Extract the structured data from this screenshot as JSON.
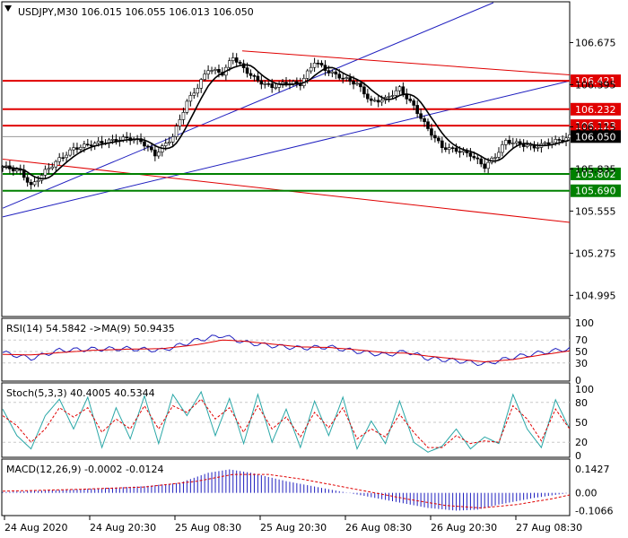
{
  "colors": {
    "bull": "#000000",
    "bear": "#000000",
    "ma": "#000000",
    "channel": "#1f1fbf",
    "resistance": "#e00000",
    "support": "#008000",
    "rsi": "#1f1fbf",
    "rsi_ma": "#e00000",
    "stoch_main": "#2aa7a7",
    "stoch_signal": "#e00000",
    "macd_hist": "#1f1fbf",
    "macd_signal": "#e00000",
    "grid": "#c8c8c8"
  },
  "header": {
    "symbol": "USDJPY,M30",
    "open": "106.015",
    "high": "106.055",
    "low": "106.013",
    "close": "106.050"
  },
  "chart_data": [
    {
      "type": "candlestick",
      "title": "USDJPY,M30  106.015 106.055 106.013 106.050",
      "ylim": [
        104.86,
        106.94
      ],
      "y_ticks": [
        "106.675",
        "106.395",
        "106.115",
        "105.835",
        "105.555",
        "105.275",
        "104.995"
      ],
      "current_price": "106.050",
      "levels": [
        {
          "label": "106.421",
          "value": 106.421,
          "kind": "resistance"
        },
        {
          "label": "106.232",
          "value": 106.232,
          "kind": "resistance"
        },
        {
          "label": "106.123",
          "value": 106.123,
          "kind": "resistance"
        },
        {
          "label": "105.802",
          "value": 105.802,
          "kind": "support"
        },
        {
          "label": "105.690",
          "value": 105.69,
          "kind": "support"
        }
      ],
      "x_ticks": [
        "24 Aug 2020",
        "24 Aug 20:30",
        "25 Aug 08:30",
        "25 Aug 20:30",
        "26 Aug 08:30",
        "26 Aug 20:30",
        "27 Aug 08:30"
      ],
      "close_path": [
        [
          0,
          105.85
        ],
        [
          5,
          105.82
        ],
        [
          8,
          105.72
        ],
        [
          12,
          105.82
        ],
        [
          16,
          105.9
        ],
        [
          20,
          105.97
        ],
        [
          25,
          106.0
        ],
        [
          30,
          106.02
        ],
        [
          35,
          106.04
        ],
        [
          39,
          106.02
        ],
        [
          43,
          105.93
        ],
        [
          48,
          106.05
        ],
        [
          52,
          106.28
        ],
        [
          55,
          106.38
        ],
        [
          58,
          106.5
        ],
        [
          62,
          106.47
        ],
        [
          65,
          106.58
        ],
        [
          68,
          106.5
        ],
        [
          72,
          106.42
        ],
        [
          76,
          106.38
        ],
        [
          80,
          106.41
        ],
        [
          84,
          106.4
        ],
        [
          88,
          106.55
        ],
        [
          92,
          106.48
        ],
        [
          96,
          106.44
        ],
        [
          100,
          106.4
        ],
        [
          104,
          106.28
        ],
        [
          108,
          106.3
        ],
        [
          112,
          106.37
        ],
        [
          116,
          106.25
        ],
        [
          120,
          106.1
        ],
        [
          124,
          105.98
        ],
        [
          128,
          105.96
        ],
        [
          132,
          105.93
        ],
        [
          136,
          105.85
        ],
        [
          139,
          105.92
        ],
        [
          142,
          106.02
        ],
        [
          146,
          106.0
        ],
        [
          150,
          105.98
        ],
        [
          154,
          106.01
        ],
        [
          158,
          106.03
        ],
        [
          160,
          106.05
        ]
      ]
    },
    {
      "type": "line",
      "title": "RSI(14) 54.5842  ->MA(9) 50.9435",
      "ylim": [
        0,
        100
      ],
      "y_ticks": [
        "100",
        "70",
        "50",
        "30",
        "0"
      ],
      "series": [
        {
          "name": "RSI(14)",
          "path": [
            [
              0,
              48
            ],
            [
              8,
              38
            ],
            [
              16,
              52
            ],
            [
              25,
              54
            ],
            [
              35,
              55
            ],
            [
              45,
              52
            ],
            [
              55,
              70
            ],
            [
              62,
              78
            ],
            [
              68,
              66
            ],
            [
              76,
              60
            ],
            [
              84,
              56
            ],
            [
              92,
              58
            ],
            [
              100,
              50
            ],
            [
              108,
              44
            ],
            [
              114,
              50
            ],
            [
              120,
              38
            ],
            [
              128,
              34
            ],
            [
              136,
              28
            ],
            [
              144,
              40
            ],
            [
              152,
              48
            ],
            [
              160,
              55
            ]
          ]
        },
        {
          "name": "MA(9)",
          "path": [
            [
              0,
              45
            ],
            [
              8,
              44
            ],
            [
              16,
              48
            ],
            [
              25,
              52
            ],
            [
              35,
              54
            ],
            [
              45,
              55
            ],
            [
              55,
              62
            ],
            [
              62,
              70
            ],
            [
              68,
              68
            ],
            [
              76,
              63
            ],
            [
              84,
              58
            ],
            [
              92,
              57
            ],
            [
              100,
              53
            ],
            [
              108,
              48
            ],
            [
              114,
              47
            ],
            [
              120,
              42
            ],
            [
              128,
              37
            ],
            [
              136,
              32
            ],
            [
              144,
              36
            ],
            [
              152,
              44
            ],
            [
              160,
              51
            ]
          ]
        }
      ]
    },
    {
      "type": "line",
      "title": "Stoch(5,3,3) 40.4005 40.5344",
      "ylim": [
        0,
        100
      ],
      "y_ticks": [
        "100",
        "80",
        "50",
        "20",
        "0"
      ],
      "series": [
        {
          "name": "main",
          "path": [
            [
              0,
              70
            ],
            [
              4,
              30
            ],
            [
              8,
              10
            ],
            [
              12,
              60
            ],
            [
              16,
              85
            ],
            [
              20,
              40
            ],
            [
              24,
              88
            ],
            [
              28,
              12
            ],
            [
              32,
              72
            ],
            [
              36,
              25
            ],
            [
              40,
              90
            ],
            [
              44,
              18
            ],
            [
              48,
              92
            ],
            [
              52,
              60
            ],
            [
              56,
              96
            ],
            [
              60,
              30
            ],
            [
              64,
              86
            ],
            [
              68,
              18
            ],
            [
              72,
              92
            ],
            [
              76,
              20
            ],
            [
              80,
              70
            ],
            [
              84,
              12
            ],
            [
              88,
              82
            ],
            [
              92,
              30
            ],
            [
              96,
              88
            ],
            [
              100,
              10
            ],
            [
              104,
              52
            ],
            [
              108,
              18
            ],
            [
              112,
              82
            ],
            [
              116,
              20
            ],
            [
              120,
              5
            ],
            [
              124,
              14
            ],
            [
              128,
              40
            ],
            [
              132,
              10
            ],
            [
              136,
              28
            ],
            [
              140,
              18
            ],
            [
              144,
              92
            ],
            [
              148,
              40
            ],
            [
              152,
              12
            ],
            [
              156,
              84
            ],
            [
              160,
              40
            ]
          ]
        },
        {
          "name": "signal",
          "path": [
            [
              0,
              60
            ],
            [
              4,
              45
            ],
            [
              8,
              20
            ],
            [
              12,
              40
            ],
            [
              16,
              72
            ],
            [
              20,
              58
            ],
            [
              24,
              72
            ],
            [
              28,
              35
            ],
            [
              32,
              55
            ],
            [
              36,
              40
            ],
            [
              40,
              75
            ],
            [
              44,
              40
            ],
            [
              48,
              75
            ],
            [
              52,
              65
            ],
            [
              56,
              85
            ],
            [
              60,
              55
            ],
            [
              64,
              72
            ],
            [
              68,
              35
            ],
            [
              72,
              75
            ],
            [
              76,
              40
            ],
            [
              80,
              58
            ],
            [
              84,
              28
            ],
            [
              88,
              65
            ],
            [
              92,
              42
            ],
            [
              96,
              72
            ],
            [
              100,
              25
            ],
            [
              104,
              40
            ],
            [
              108,
              28
            ],
            [
              112,
              62
            ],
            [
              116,
              35
            ],
            [
              120,
              12
            ],
            [
              124,
              12
            ],
            [
              128,
              30
            ],
            [
              132,
              18
            ],
            [
              136,
              22
            ],
            [
              140,
              20
            ],
            [
              144,
              75
            ],
            [
              148,
              55
            ],
            [
              152,
              22
            ],
            [
              156,
              70
            ],
            [
              160,
              40
            ]
          ]
        }
      ]
    },
    {
      "type": "bar",
      "title": "MACD(12,26,9) -0.0002 -0.0124",
      "ylim": [
        -0.13,
        0.18
      ],
      "y_ticks": [
        "0.1427",
        "0.00",
        "-0.1066"
      ],
      "histogram_path": [
        [
          0,
          0.005
        ],
        [
          20,
          0.02
        ],
        [
          40,
          0.04
        ],
        [
          50,
          0.06
        ],
        [
          58,
          0.12
        ],
        [
          64,
          0.14
        ],
        [
          70,
          0.12
        ],
        [
          80,
          0.07
        ],
        [
          90,
          0.03
        ],
        [
          100,
          -0.01
        ],
        [
          110,
          -0.05
        ],
        [
          120,
          -0.09
        ],
        [
          128,
          -0.106
        ],
        [
          134,
          -0.1
        ],
        [
          140,
          -0.07
        ],
        [
          150,
          -0.03
        ],
        [
          160,
          -0.0002
        ]
      ],
      "signal_path": [
        [
          0,
          0.01
        ],
        [
          20,
          0.02
        ],
        [
          40,
          0.035
        ],
        [
          55,
          0.07
        ],
        [
          65,
          0.11
        ],
        [
          75,
          0.11
        ],
        [
          85,
          0.08
        ],
        [
          95,
          0.04
        ],
        [
          105,
          0.0
        ],
        [
          115,
          -0.04
        ],
        [
          125,
          -0.075
        ],
        [
          135,
          -0.09
        ],
        [
          145,
          -0.07
        ],
        [
          155,
          -0.035
        ],
        [
          160,
          -0.0124
        ]
      ]
    }
  ]
}
